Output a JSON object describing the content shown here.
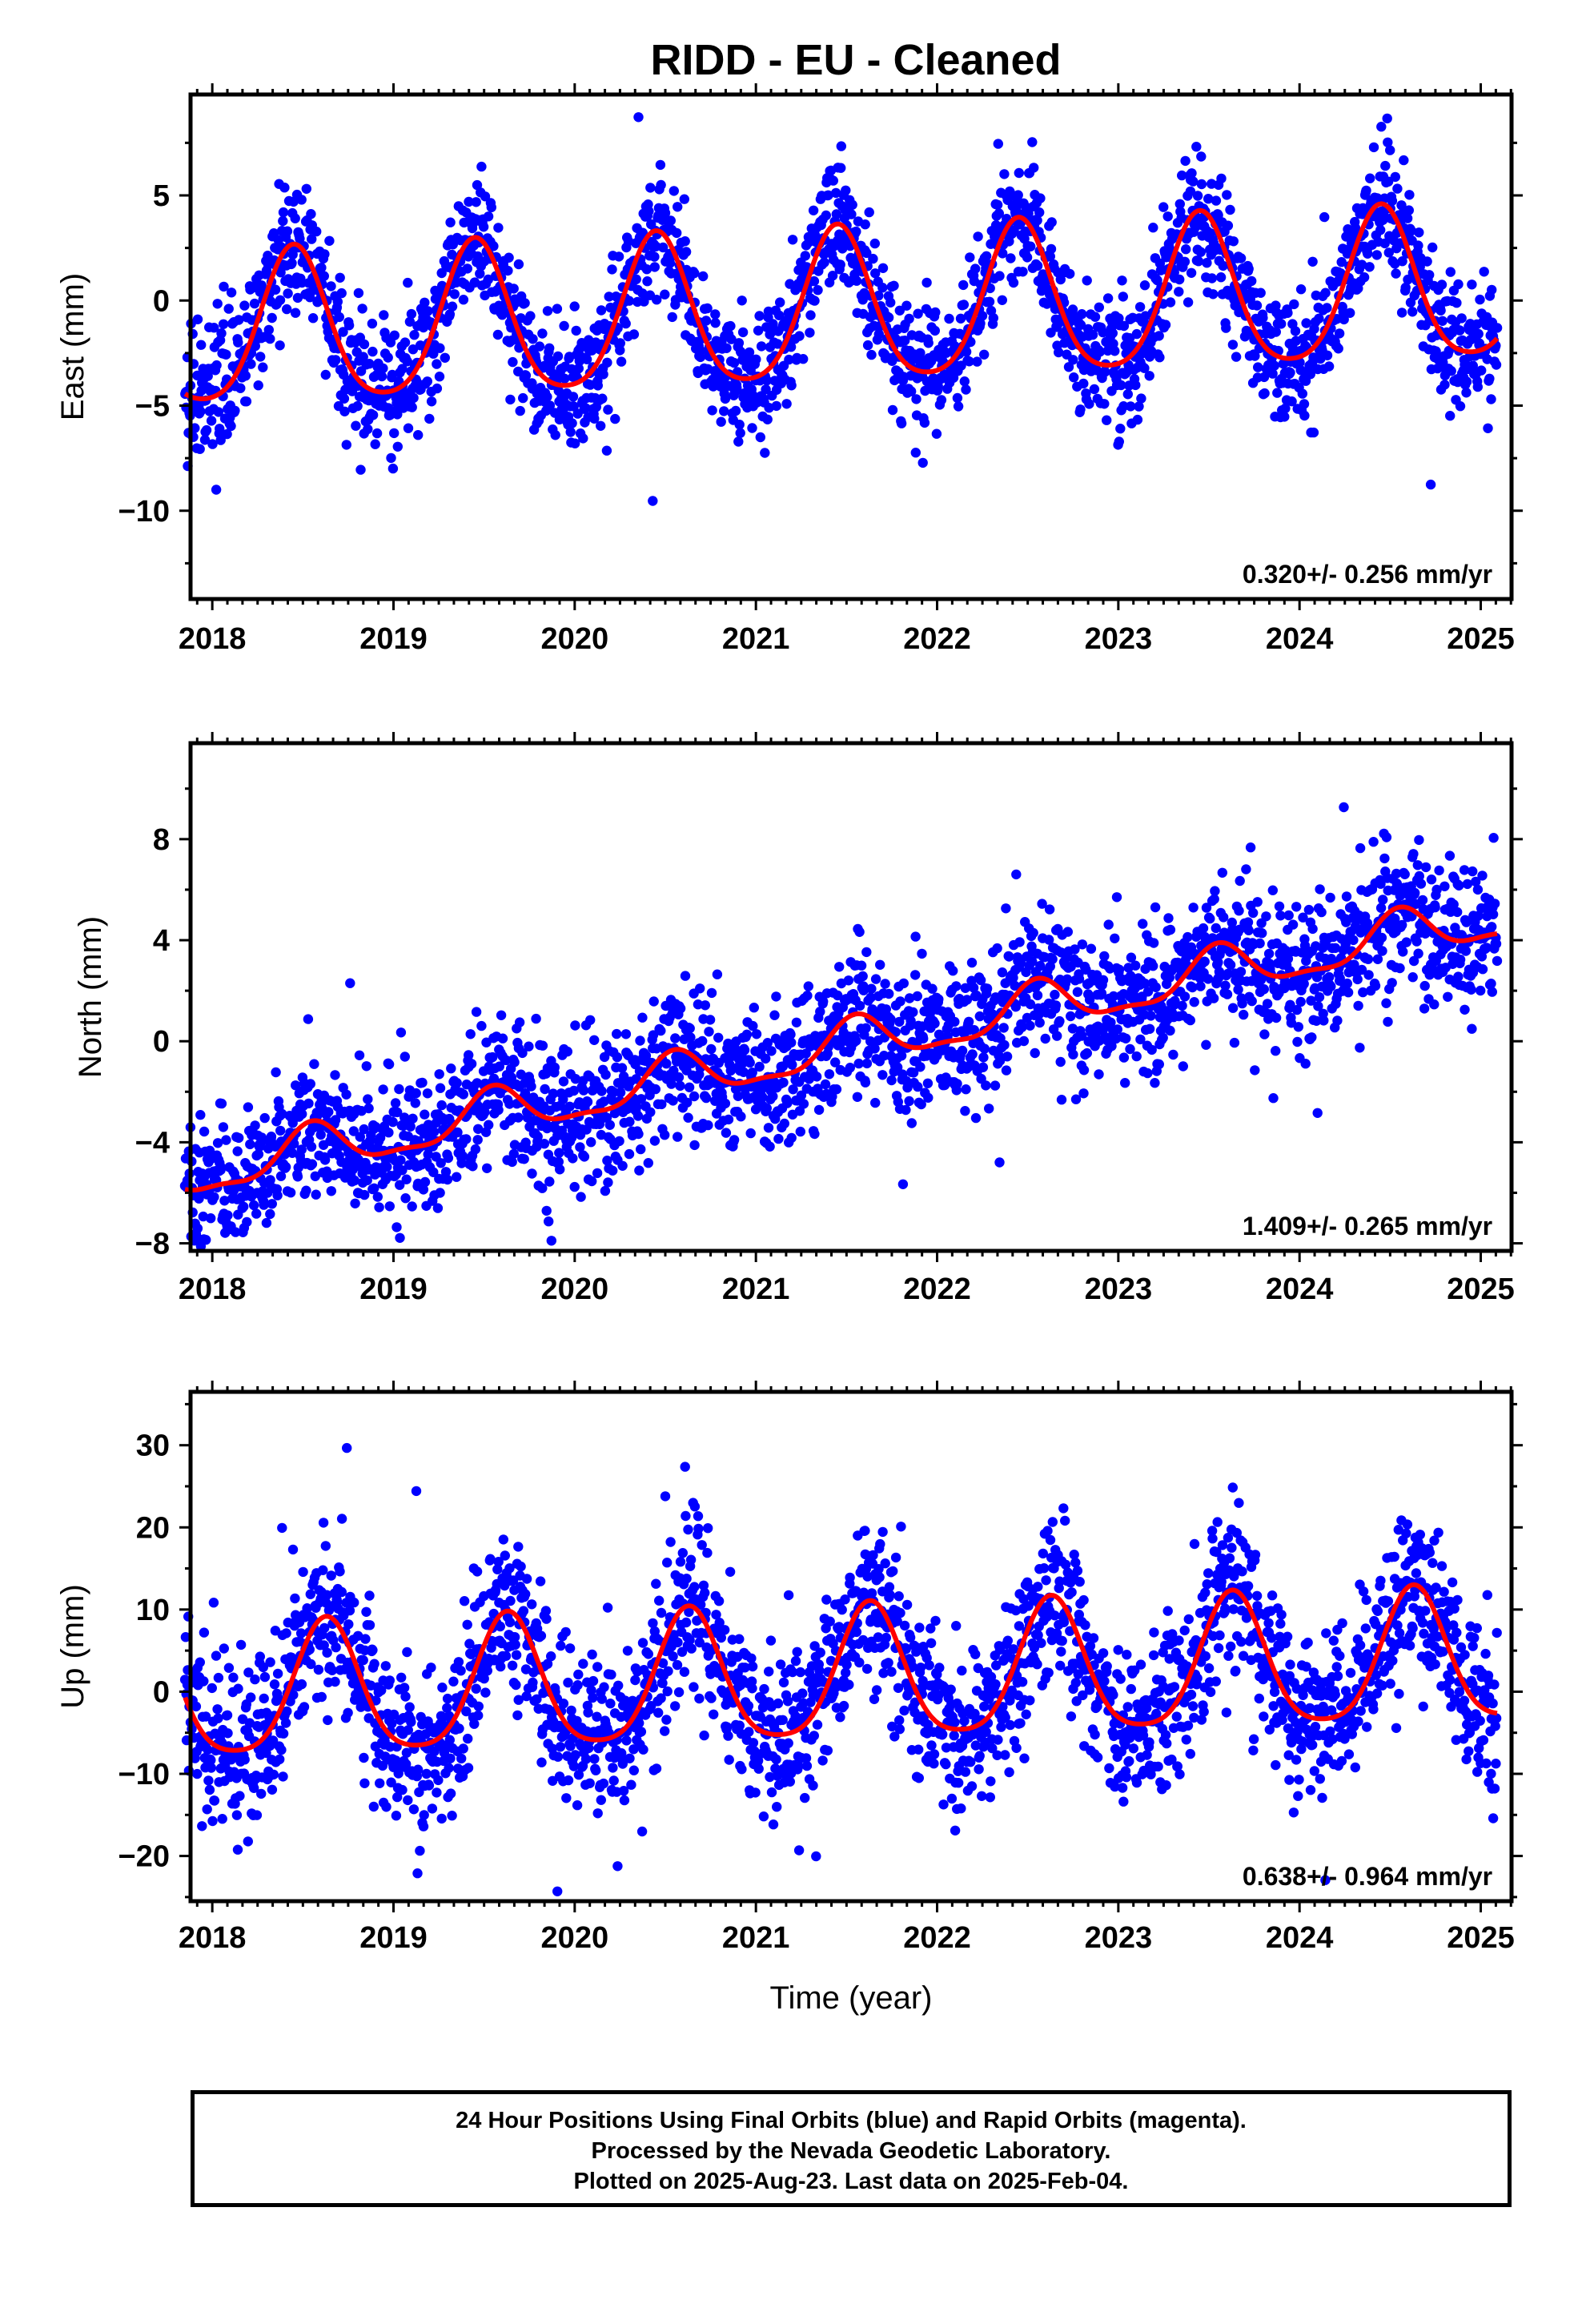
{
  "title": "RIDD  - EU - Cleaned",
  "xlabel": "Time (year)",
  "footer": {
    "line1": "24 Hour Positions Using Final Orbits (blue) and Rapid Orbits (magenta).",
    "line2": "Processed by the Nevada Geodetic Laboratory.",
    "line3": "Plotted on 2025-Aug-23. Last data on 2025-Feb-04."
  },
  "colors": {
    "points": "#0000ff",
    "fit": "#ff0000",
    "axes": "#000000"
  },
  "chart_data": [
    {
      "type": "scatter",
      "component": "east",
      "ylabel": "East (mm)",
      "rate_text": "0.320+/- 0.256 mm/yr",
      "xlim": [
        2017.88,
        2025.17
      ],
      "ylim": [
        -14.2,
        9.8
      ],
      "xticks": [
        2018,
        2019,
        2020,
        2021,
        2022,
        2023,
        2024,
        2025
      ],
      "yticks": [
        -10,
        -5,
        0,
        5
      ],
      "grid": false,
      "trend": {
        "slope": 0.32,
        "offset_at_2021": -0.7,
        "amp_annual": 3.6,
        "peak_phase": 0.45,
        "amp_semiannual": 0.6
      },
      "scatter_sigma": 1.5,
      "data_span": [
        2017.85,
        2025.09
      ],
      "observations": 2400
    },
    {
      "type": "scatter",
      "component": "north",
      "ylabel": "North (mm)",
      "rate_text": "1.409+/- 0.265 mm/yr",
      "xlim": [
        2017.88,
        2025.17
      ],
      "ylim": [
        -8.3,
        11.8
      ],
      "xticks": [
        2018,
        2019,
        2020,
        2021,
        2022,
        2023,
        2024,
        2025
      ],
      "yticks": [
        -8,
        -4,
        0,
        4,
        8
      ],
      "grid": false,
      "trend": {
        "slope": 1.41,
        "offset_at_2021": -0.9,
        "amp_annual": 0.9,
        "peak_phase": 0.55,
        "amp_semiannual": 0.3
      },
      "scatter_sigma": 1.4,
      "data_span": [
        2017.85,
        2025.09
      ],
      "observations": 2400
    },
    {
      "type": "scatter",
      "component": "up",
      "ylabel": "Up (mm)",
      "rate_text": "0.638+/- 0.964 mm/yr",
      "xlim": [
        2017.88,
        2025.17
      ],
      "ylim": [
        -25.5,
        36.5
      ],
      "xticks": [
        2018,
        2019,
        2020,
        2021,
        2022,
        2023,
        2024,
        2025
      ],
      "yticks": [
        -20,
        -10,
        0,
        10,
        20,
        30
      ],
      "grid": false,
      "trend": {
        "slope": 0.64,
        "offset_at_2021": 1.2,
        "amp_annual": 8.0,
        "peak_phase": 0.63,
        "amp_semiannual": 1.5
      },
      "scatter_sigma": 5.0,
      "data_span": [
        2017.85,
        2025.09
      ],
      "observations": 2400
    }
  ]
}
